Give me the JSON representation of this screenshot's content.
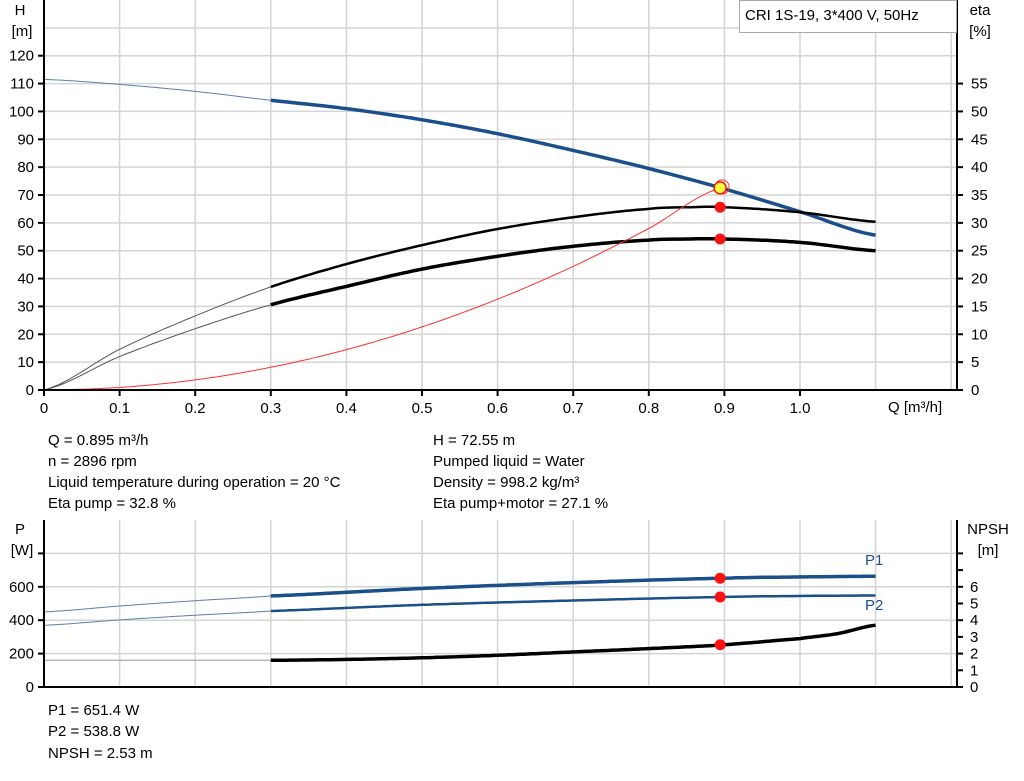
{
  "legend_box": "CRI 1S-19, 3*400 V, 50Hz",
  "colors": {
    "head": "#1a4f8a",
    "efficiency": "#000000",
    "system": "#ff3030",
    "point": "#ff1010",
    "duty_point": "#ffff40",
    "grid": "#d4d4d4",
    "power": "#1a4f8a",
    "npsh": "#000000"
  },
  "chart_data": [
    {
      "type": "line",
      "xlabel": "Q [m³/h]",
      "ylabel": "H",
      "ylabel_unit": "[m]",
      "y2label": "eta",
      "y2label_unit": "[%]",
      "xlim": [
        0,
        1.21
      ],
      "ylim": [
        0,
        140
      ],
      "y2lim": [
        0,
        70
      ],
      "xticks": [
        "0",
        "0.1",
        "0.2",
        "0.3",
        "0.4",
        "0.5",
        "0.6",
        "0.7",
        "0.8",
        "0.9",
        "1.0"
      ],
      "yticks": [
        "0",
        "10",
        "20",
        "30",
        "40",
        "50",
        "60",
        "70",
        "80",
        "90",
        "100",
        "110",
        "120"
      ],
      "y2ticks": [
        "0",
        "5",
        "10",
        "15",
        "20",
        "25",
        "30",
        "35",
        "40",
        "45",
        "50",
        "55"
      ],
      "grid": true,
      "series": [
        {
          "key": "head",
          "axis": "H",
          "x": [
            0,
            0.1,
            0.2,
            0.3,
            0.4,
            0.5,
            0.6,
            0.7,
            0.8,
            0.9,
            1.0,
            1.1
          ],
          "y": [
            111.5,
            109.7,
            107.2,
            104,
            101,
            97,
            92,
            86,
            79.5,
            72.2,
            64,
            55.6
          ],
          "operating_range": [
            0.3,
            1.1
          ]
        },
        {
          "key": "eta_pump",
          "axis": "eta",
          "x": [
            0,
            0.1,
            0.2,
            0.3,
            0.4,
            0.5,
            0.6,
            0.7,
            0.8,
            0.85,
            0.9,
            1.0,
            1.1
          ],
          "y": [
            0,
            7.3,
            13.3,
            18.5,
            22.6,
            26,
            28.9,
            31,
            32.5,
            32.8,
            32.8,
            31.9,
            30.2
          ],
          "operating_range": [
            0.3,
            1.1
          ]
        },
        {
          "key": "eta_pump_motor",
          "axis": "eta",
          "x": [
            0,
            0.1,
            0.2,
            0.3,
            0.4,
            0.5,
            0.6,
            0.7,
            0.8,
            0.85,
            0.9,
            1.0,
            1.1
          ],
          "y": [
            0,
            6,
            11,
            15.3,
            18.6,
            21.7,
            24,
            25.8,
            26.9,
            27.1,
            27.1,
            26.5,
            25
          ],
          "operating_range": [
            0.3,
            1.1
          ]
        },
        {
          "key": "system",
          "axis": "H",
          "x": [
            0,
            0.1,
            0.2,
            0.3,
            0.4,
            0.5,
            0.6,
            0.7,
            0.8,
            0.895
          ],
          "y": [
            0,
            0.91,
            3.62,
            8.15,
            14.49,
            22.64,
            32.6,
            44.38,
            57.97,
            72.55
          ]
        }
      ],
      "duty_point": {
        "Q": 0.895,
        "H": 72.55,
        "eta_pump": 32.8,
        "eta_pump_motor": 27.1
      }
    },
    {
      "type": "line",
      "ylabel": "P",
      "ylabel_unit": "[W]",
      "y2label": "NPSH",
      "y2label_unit": "[m]",
      "xlim": [
        0,
        1.21
      ],
      "ylim": [
        0,
        1000
      ],
      "y2lim": [
        0,
        10
      ],
      "yticks": [
        "0",
        "200",
        "400",
        "600"
      ],
      "y2ticks": [
        "0",
        "1",
        "2",
        "3",
        "4",
        "5",
        "6"
      ],
      "grid": true,
      "series": [
        {
          "key": "P1",
          "name": "P1",
          "axis": "P",
          "x": [
            0,
            0.1,
            0.2,
            0.3,
            0.5,
            0.7,
            0.9,
            1.0,
            1.1
          ],
          "y": [
            450,
            485,
            517,
            545,
            590,
            625,
            651.4,
            659,
            663
          ],
          "operating_range": [
            0.3,
            1.1
          ]
        },
        {
          "key": "P2",
          "name": "P2",
          "axis": "P",
          "x": [
            0,
            0.1,
            0.2,
            0.3,
            0.5,
            0.7,
            0.9,
            1.0,
            1.1
          ],
          "y": [
            370,
            402,
            430,
            455,
            492,
            518,
            538.8,
            545,
            548
          ],
          "operating_range": [
            0.3,
            1.1
          ]
        },
        {
          "key": "NPSH",
          "axis": "NPSH",
          "x": [
            0,
            0.3,
            0.4,
            0.5,
            0.6,
            0.7,
            0.8,
            0.9,
            1.0,
            1.05,
            1.1
          ],
          "y": [
            1.6,
            1.6,
            1.65,
            1.75,
            1.9,
            2.1,
            2.3,
            2.53,
            2.9,
            3.2,
            3.7
          ],
          "operating_range": [
            0.3,
            1.1
          ]
        }
      ],
      "duty_point": {
        "Q": 0.895,
        "P1": 651.4,
        "P2": 538.8,
        "NPSH": 2.53
      }
    }
  ],
  "readout": {
    "left": [
      "Q = 0.895 m³/h",
      "n = 2896 rpm",
      "Liquid temperature during operation = 20 °C",
      "Eta pump = 32.8 %"
    ],
    "right": [
      "H = 72.55 m",
      "Pumped liquid = Water",
      "Density = 998.2 kg/m³",
      "Eta pump+motor = 27.1 %"
    ],
    "bottom": [
      "P1 = 651.4 W",
      "P2 = 538.8 W",
      "NPSH = 2.53 m"
    ]
  }
}
